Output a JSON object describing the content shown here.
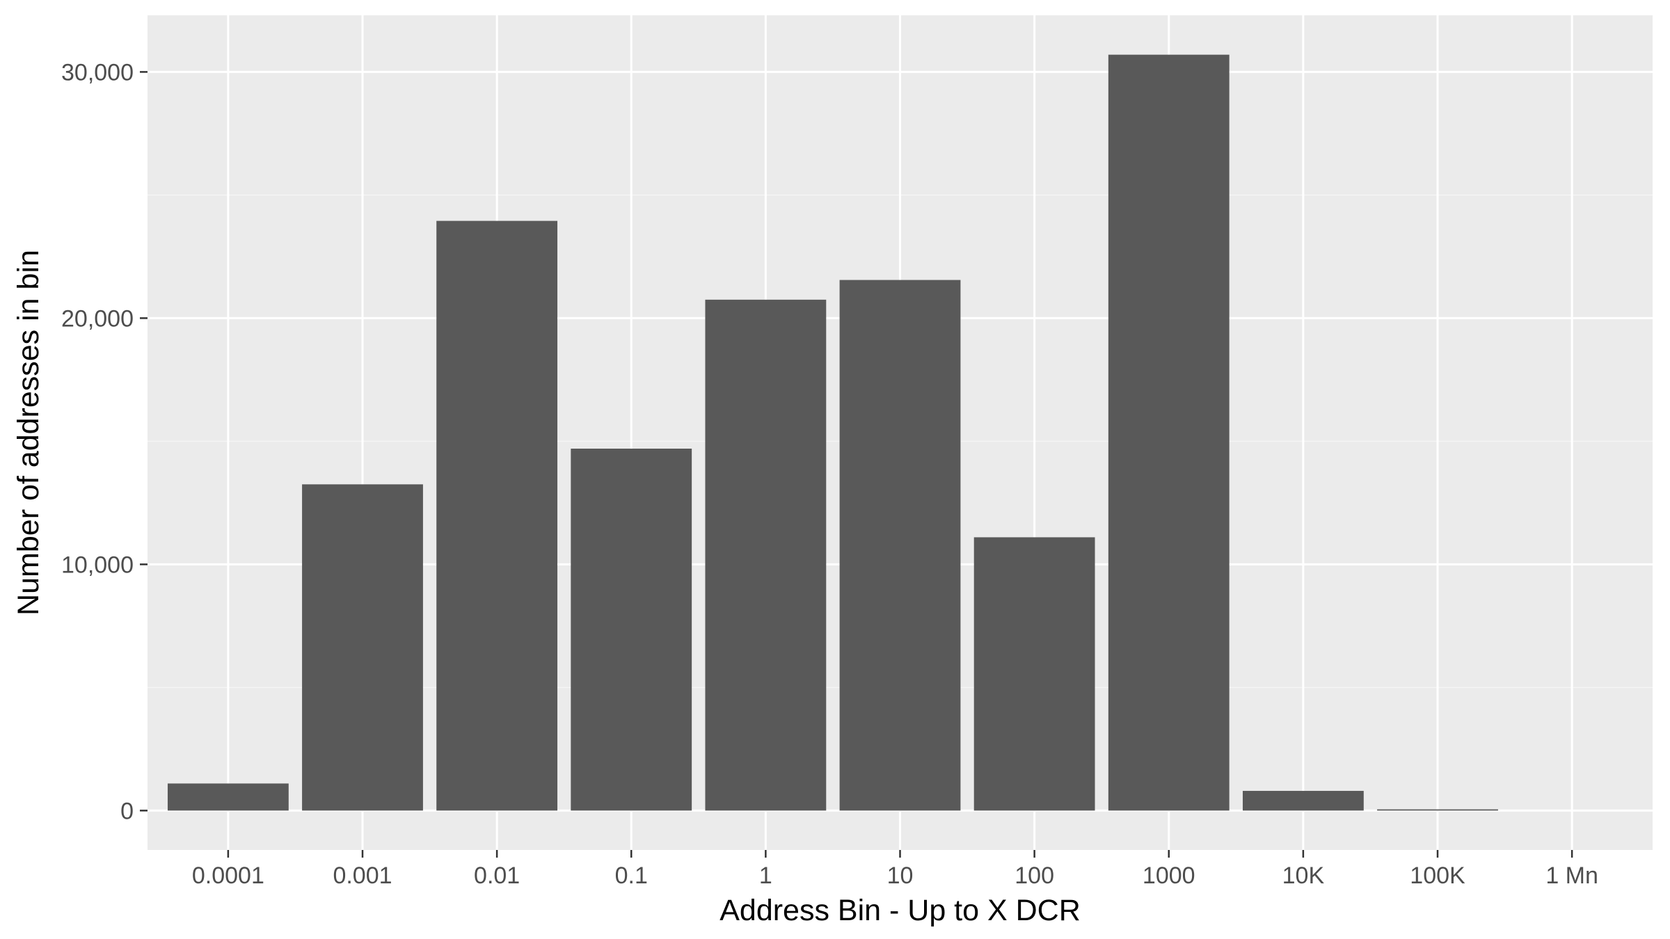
{
  "chart_data": {
    "type": "bar",
    "title": "",
    "xlabel": "Address Bin - Up to X DCR",
    "ylabel": "Number of addresses in bin",
    "categories": [
      "0.0001",
      "0.001",
      "0.01",
      "0.1",
      "1",
      "10",
      "100",
      "1000",
      "10K",
      "100K",
      "1 Mn"
    ],
    "values": [
      1100,
      13250,
      23950,
      14700,
      20750,
      21550,
      11100,
      30700,
      800,
      50,
      0
    ],
    "ylim": [
      -1600,
      32300
    ],
    "yticks": [
      0,
      10000,
      20000,
      30000
    ],
    "ytick_labels": [
      "0",
      "10,000",
      "20,000",
      "30,000"
    ],
    "grid": true,
    "colors": {
      "panel_background": "#ebebeb",
      "grid_major": "#ffffff",
      "grid_minor": "#f5f5f5",
      "bar_fill": "#595959",
      "tick_mark": "#333333"
    }
  }
}
